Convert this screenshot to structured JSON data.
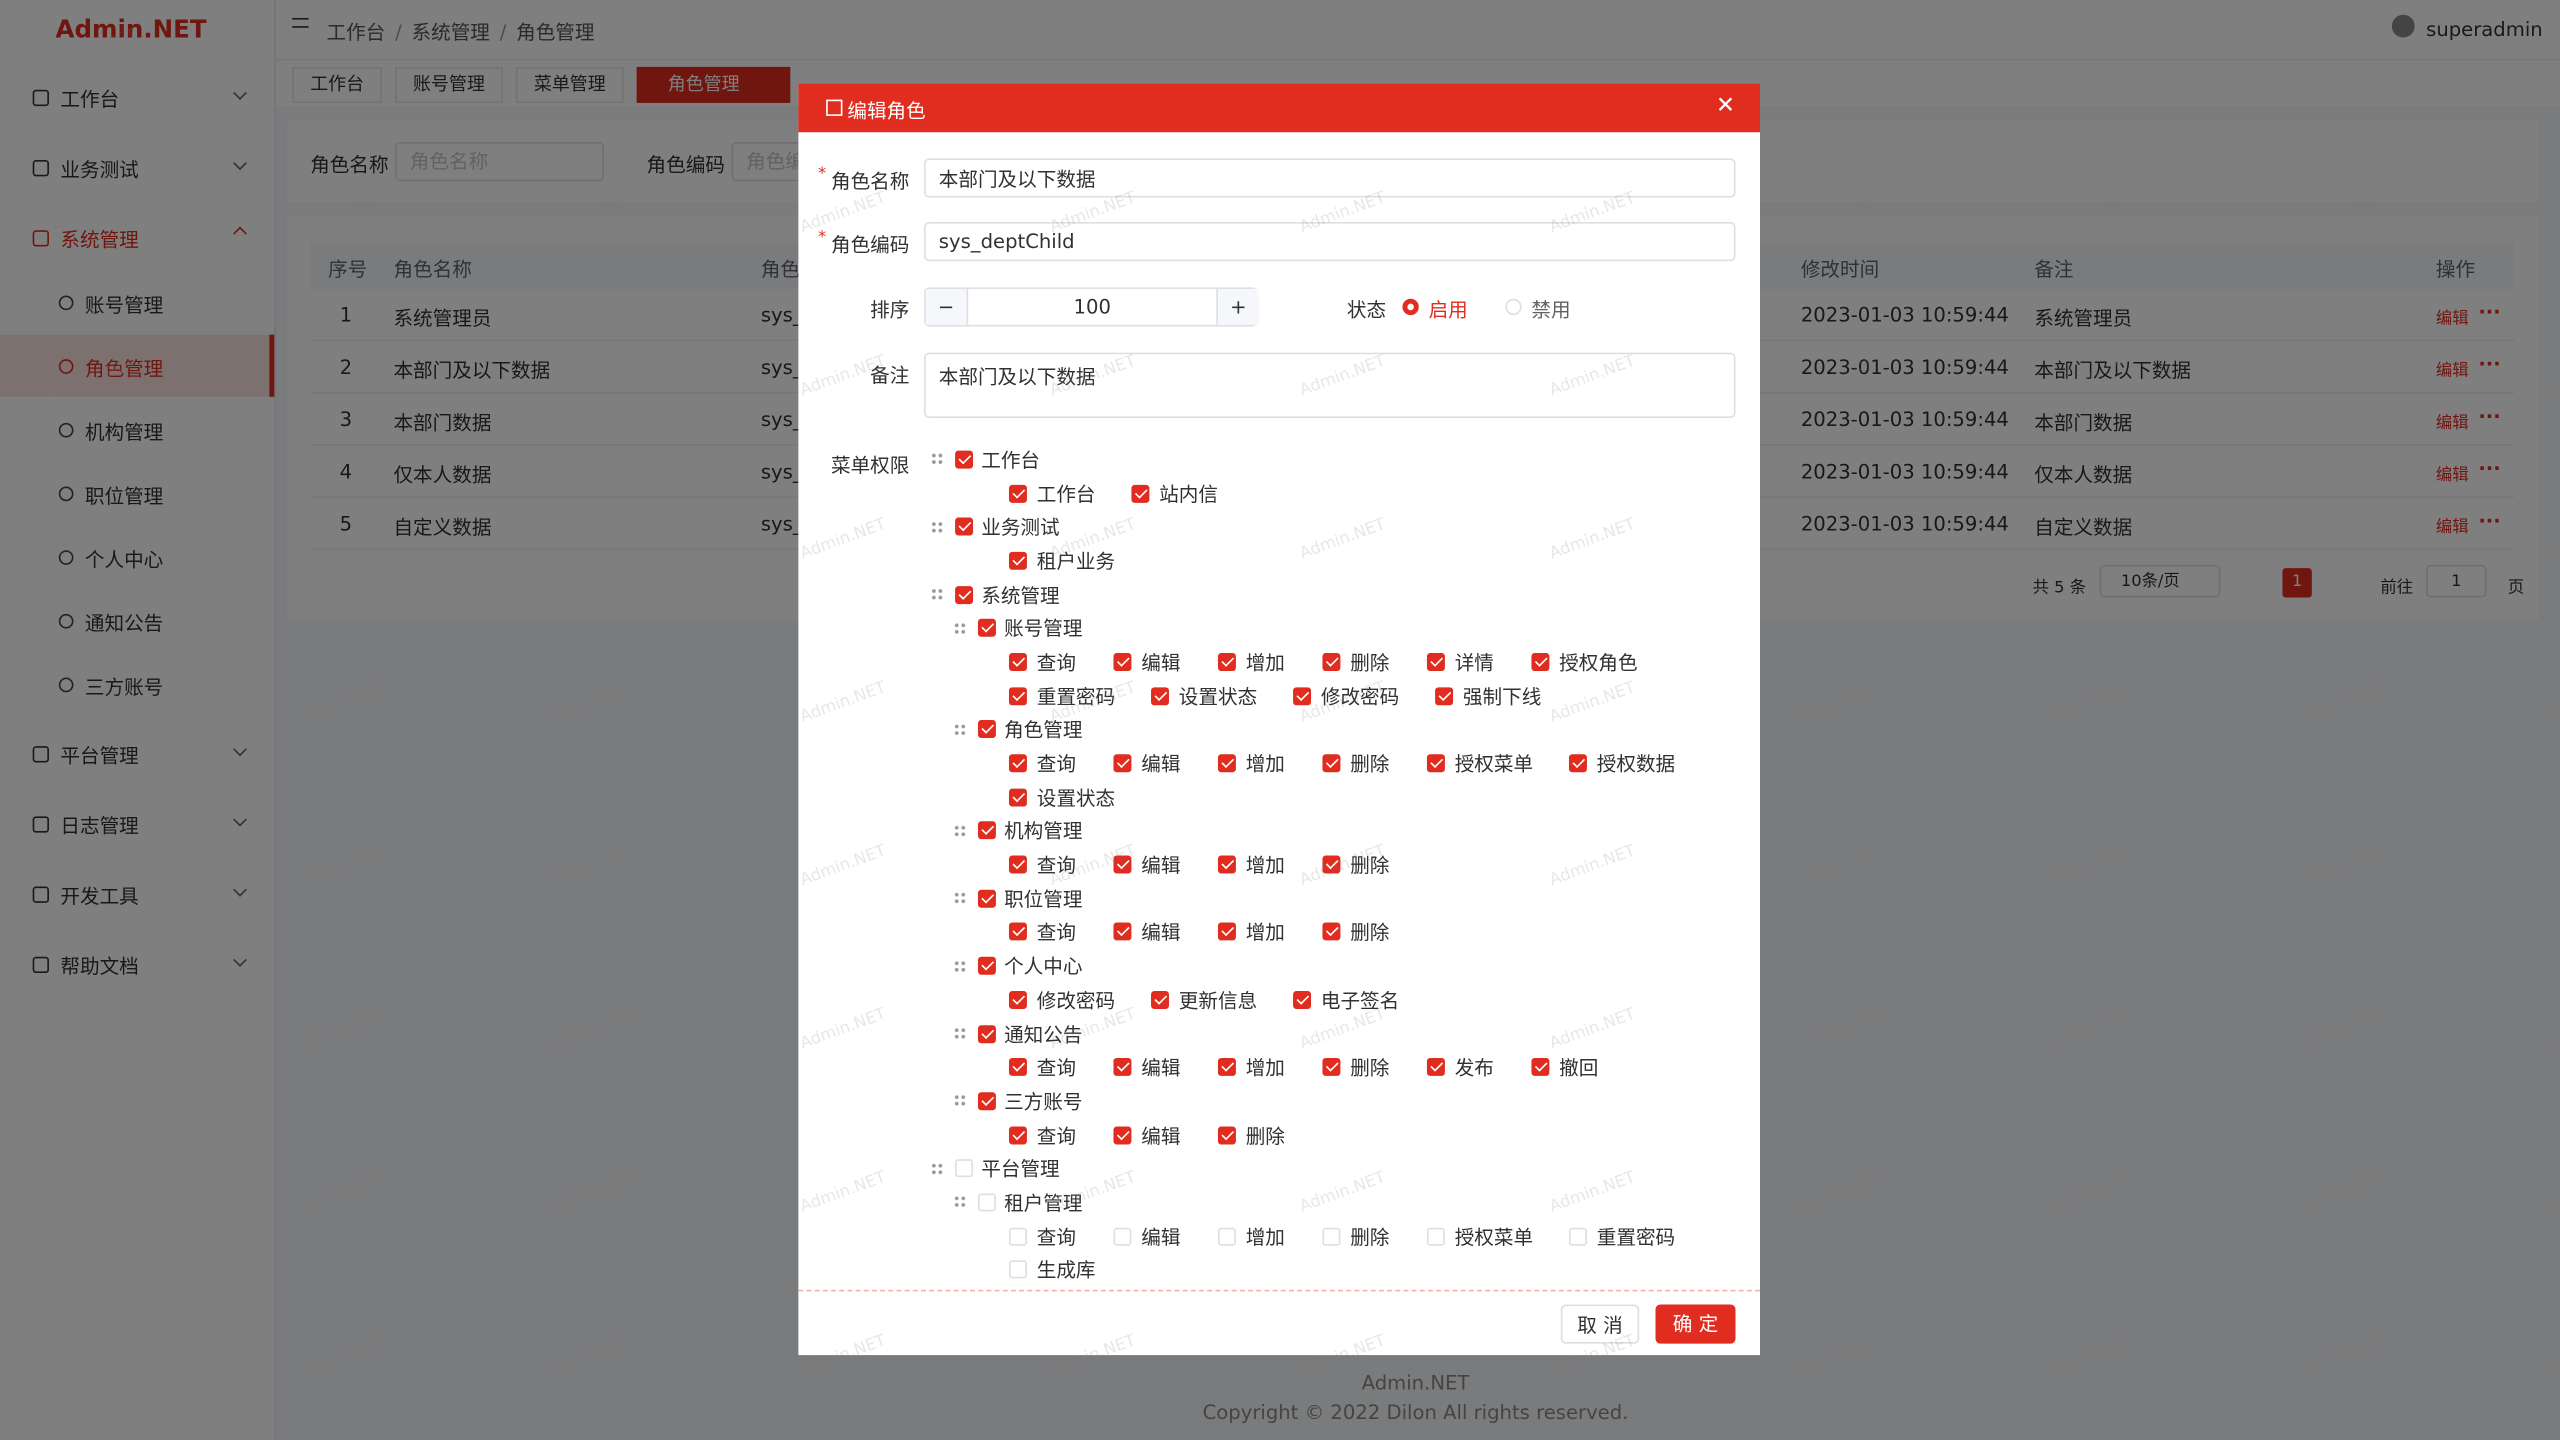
{
  "app": {
    "logo": "Admin.NET",
    "watermark": "Admin.NET"
  },
  "sidebar": {
    "open": 2,
    "active_child": 1,
    "items": [
      {
        "label": "工作台"
      },
      {
        "label": "业务测试"
      },
      {
        "label": "系统管理",
        "children": [
          "账号管理",
          "角色管理",
          "机构管理",
          "职位管理",
          "个人中心",
          "通知公告",
          "三方账号"
        ]
      },
      {
        "label": "平台管理"
      },
      {
        "label": "日志管理"
      },
      {
        "label": "开发工具"
      },
      {
        "label": "帮助文档"
      }
    ]
  },
  "header": {
    "breadcrumb": [
      "工作台",
      "系统管理",
      "角色管理"
    ],
    "user": "superadmin"
  },
  "tabs": {
    "items": [
      "工作台",
      "账号管理",
      "菜单管理",
      "角色管理"
    ],
    "active": 3
  },
  "search": {
    "fields": [
      {
        "label": "角色名称",
        "placeholder": "角色名称"
      },
      {
        "label": "角色编码",
        "placeholder": "角色编码"
      }
    ]
  },
  "table": {
    "columns": [
      "序号",
      "角色名称",
      "角色编码",
      "修改时间",
      "备注",
      "操作"
    ],
    "rows": [
      [
        1,
        "系统管理员",
        "sys_",
        "2023-01-03 10:59:44",
        "系统管理员",
        "编辑"
      ],
      [
        2,
        "本部门及以下数据",
        "sys_",
        "2023-01-03 10:59:44",
        "本部门及以下数据",
        "编辑"
      ],
      [
        3,
        "本部门数据",
        "sys_",
        "2023-01-03 10:59:44",
        "本部门数据",
        "编辑"
      ],
      [
        4,
        "仅本人数据",
        "sys_",
        "2023-01-03 10:59:44",
        "仅本人数据",
        "编辑"
      ],
      [
        5,
        "自定义数据",
        "sys_",
        "2023-01-03 10:59:44",
        "自定义数据",
        "编辑"
      ]
    ]
  },
  "pagination": {
    "total": "共 5 条",
    "page_size": "10条/页",
    "current": 1,
    "goto": "前往",
    "goto_value": 1,
    "page_unit": "页"
  },
  "footer": {
    "name": "Admin.NET",
    "copyright": "Copyright © 2022 Dilon All rights reserved."
  },
  "dialog": {
    "title": "编辑角色",
    "name": {
      "label": "角色名称",
      "value": "本部门及以下数据"
    },
    "code": {
      "label": "角色编码",
      "value": "sys_deptChild"
    },
    "order": {
      "label": "排序",
      "value": 100
    },
    "status": {
      "label": "状态",
      "options": [
        "启用",
        "禁用"
      ],
      "selected": 0
    },
    "remark": {
      "label": "备注",
      "value": "本部门及以下数据"
    },
    "menu": {
      "label": "菜单权限",
      "tree": [
        {
          "label": "工作台",
          "checked": true,
          "children": [
            {
              "label": "工作台",
              "checked": true
            },
            {
              "label": "站内信",
              "checked": true
            }
          ]
        },
        {
          "label": "业务测试",
          "checked": true,
          "children": [
            {
              "label": "租户业务",
              "checked": true
            }
          ]
        },
        {
          "label": "系统管理",
          "checked": true,
          "children": [
            {
              "label": "账号管理",
              "checked": true,
              "children": [
                {
                  "label": "查询",
                  "checked": true
                },
                {
                  "label": "编辑",
                  "checked": true
                },
                {
                  "label": "增加",
                  "checked": true
                },
                {
                  "label": "删除",
                  "checked": true
                },
                {
                  "label": "详情",
                  "checked": true
                },
                {
                  "label": "授权角色",
                  "checked": true
                },
                {
                  "label": "重置密码",
                  "checked": true
                },
                {
                  "label": "设置状态",
                  "checked": true
                },
                {
                  "label": "修改密码",
                  "checked": true
                },
                {
                  "label": "强制下线",
                  "checked": true
                }
              ]
            },
            {
              "label": "角色管理",
              "checked": true,
              "children": [
                {
                  "label": "查询",
                  "checked": true
                },
                {
                  "label": "编辑",
                  "checked": true
                },
                {
                  "label": "增加",
                  "checked": true
                },
                {
                  "label": "删除",
                  "checked": true
                },
                {
                  "label": "授权菜单",
                  "checked": true
                },
                {
                  "label": "授权数据",
                  "checked": true
                },
                {
                  "label": "设置状态",
                  "checked": true
                }
              ]
            },
            {
              "label": "机构管理",
              "checked": true,
              "children": [
                {
                  "label": "查询",
                  "checked": true
                },
                {
                  "label": "编辑",
                  "checked": true
                },
                {
                  "label": "增加",
                  "checked": true
                },
                {
                  "label": "删除",
                  "checked": true
                }
              ]
            },
            {
              "label": "职位管理",
              "checked": true,
              "children": [
                {
                  "label": "查询",
                  "checked": true
                },
                {
                  "label": "编辑",
                  "checked": true
                },
                {
                  "label": "增加",
                  "checked": true
                },
                {
                  "label": "删除",
                  "checked": true
                }
              ]
            },
            {
              "label": "个人中心",
              "checked": true,
              "children": [
                {
                  "label": "修改密码",
                  "checked": true
                },
                {
                  "label": "更新信息",
                  "checked": true
                },
                {
                  "label": "电子签名",
                  "checked": true
                }
              ]
            },
            {
              "label": "通知公告",
              "checked": true,
              "children": [
                {
                  "label": "查询",
                  "checked": true
                },
                {
                  "label": "编辑",
                  "checked": true
                },
                {
                  "label": "增加",
                  "checked": true
                },
                {
                  "label": "删除",
                  "checked": true
                },
                {
                  "label": "发布",
                  "checked": true
                },
                {
                  "label": "撤回",
                  "checked": true
                }
              ]
            },
            {
              "label": "三方账号",
              "checked": true,
              "children": [
                {
                  "label": "查询",
                  "checked": true
                },
                {
                  "label": "编辑",
                  "checked": true
                },
                {
                  "label": "删除",
                  "checked": true
                }
              ]
            }
          ]
        },
        {
          "label": "平台管理",
          "checked": false,
          "children": [
            {
              "label": "租户管理",
              "checked": false,
              "children": [
                {
                  "label": "查询",
                  "checked": false
                },
                {
                  "label": "编辑",
                  "checked": false
                },
                {
                  "label": "增加",
                  "checked": false
                },
                {
                  "label": "删除",
                  "checked": false
                },
                {
                  "label": "授权菜单",
                  "checked": false
                },
                {
                  "label": "重置密码",
                  "checked": false
                },
                {
                  "label": "生成库",
                  "checked": false
                }
              ]
            }
          ]
        }
      ]
    },
    "buttons": {
      "cancel": "取 消",
      "confirm": "确 定"
    }
  }
}
